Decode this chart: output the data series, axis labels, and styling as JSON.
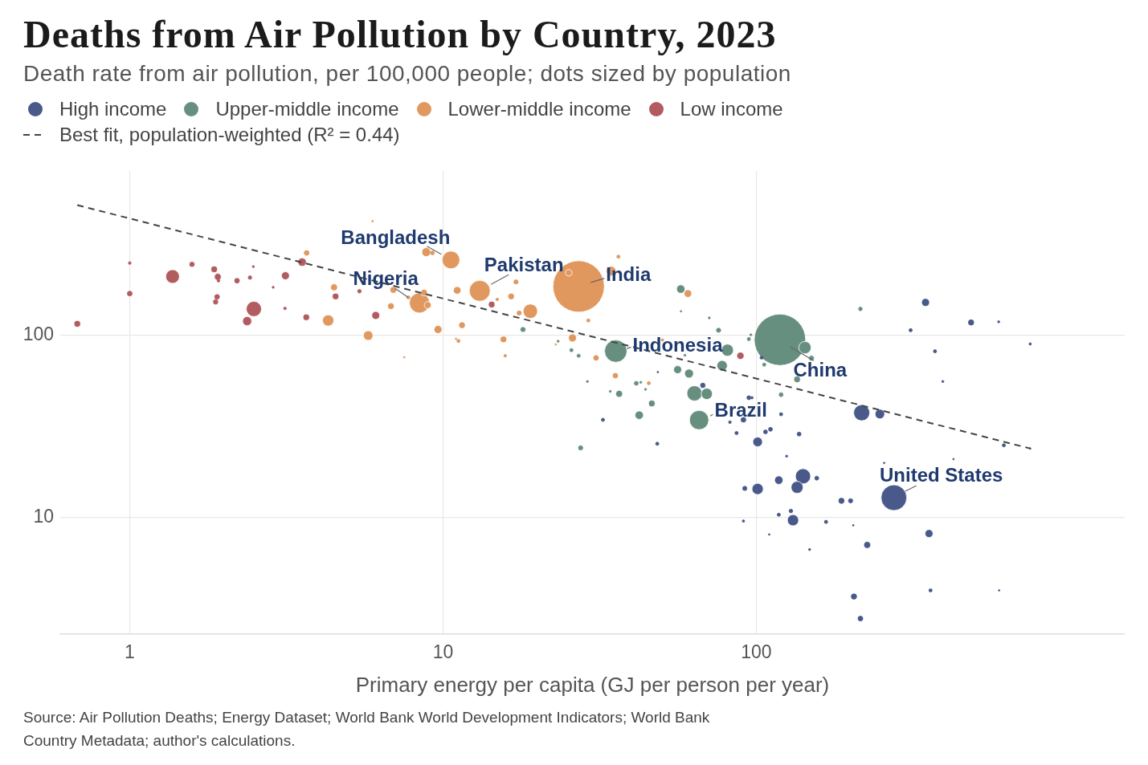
{
  "chart_data": {
    "type": "bubble",
    "title": "Deaths from Air Pollution by Country, 2023",
    "subtitle": "Death rate from air pollution, per 100,000 people; dots sized by population",
    "xlabel": "Primary energy per capita (GJ per person per year)",
    "log": "xy",
    "grid": true,
    "legend": "top left",
    "xlim": [
      0.6,
      1500
    ],
    "ylim": [
      2.3,
      800
    ],
    "xticks": [
      1,
      10,
      100
    ],
    "yticks": [
      10,
      100
    ],
    "annotations": [
      {
        "text": "Bangladesh",
        "x": 10.6,
        "y": 260
      },
      {
        "text": "Nigeria",
        "x": 8.41,
        "y": 151
      },
      {
        "text": "Pakistan",
        "x": 13.1,
        "y": 176
      },
      {
        "text": "India",
        "x": 27.1,
        "y": 186
      },
      {
        "text": "Indonesia",
        "x": 35.6,
        "y": 82.2
      },
      {
        "text": "China",
        "x": 119,
        "y": 94.8
      },
      {
        "text": "Brazil",
        "x": 65.7,
        "y": 34.4
      },
      {
        "text": "United States",
        "x": 275,
        "y": 12.9
      },
      "Source: Air Pollution Deaths; Energy Dataset; World Bank World Development Indicators; World Bank Country Metadata; author's calculations."
    ],
    "series": [
      {
        "name": "High income",
        "color": "#48598a",
        "x": [
          275,
          217,
          141,
          135,
          101,
          131,
          101,
          248,
          118,
          347,
          356,
          226,
          67.5,
          485,
          187,
          205,
          91,
          215,
          200,
          91.9,
          94.7,
          107,
          111,
          137,
          156,
          129,
          32.4,
          48.3,
          86.5,
          104,
          311,
          372,
          120,
          617,
          118,
          167,
          360,
          82.4,
          96.9,
          91,
          749,
          594,
          394,
          125,
          148,
          48.5,
          749,
          204,
          110,
          596,
          426,
          256
        ],
        "values": [
          12.9,
          37.7,
          16.9,
          14.7,
          14.4,
          9.7,
          26.1,
          37.1,
          16.1,
          152,
          8.2,
          7.1,
          53.3,
          118,
          12.4,
          3.7,
          34.5,
          2.8,
          12.4,
          14.5,
          45.6,
          29.6,
          30.6,
          28.8,
          16.5,
          10.9,
          34.5,
          25.5,
          29.2,
          75.7,
          107,
          82,
          37,
          25,
          10.4,
          9.5,
          4.0,
          33.5,
          45.6,
          9.6,
          90,
          119,
          56,
          21.8,
          6.7,
          63,
          24,
          9.1,
          8.1,
          4.0,
          21,
          20
        ],
        "sizes": [
          0.25,
          0.098,
          0.088,
          0.055,
          0.048,
          0.048,
          0.035,
          0.035,
          0.027,
          0.024,
          0.024,
          0.018,
          0.013,
          0.011,
          0.011,
          0.011,
          0.009,
          0.009,
          0.007,
          0.007,
          0.006,
          0.006,
          0.006,
          0.006,
          0.006,
          0.005,
          0.004,
          0.004,
          0.004,
          0.004,
          0.004,
          0.004,
          0.004,
          0.004,
          0.004,
          0.004,
          0.004,
          0.0028,
          0.0022,
          0.0022,
          0.0022,
          0.0017,
          0.0017,
          0.0017,
          0.0017,
          0.001,
          0.001,
          0.001,
          0.001,
          0.001,
          0.001,
          0.001
        ]
      },
      {
        "name": "Upper-middle income",
        "color": "#668f80",
        "x": [
          119,
          35.6,
          65.7,
          63.5,
          143,
          80.9,
          69.5,
          77.8,
          61.0,
          57.4,
          42.3,
          56.1,
          36.5,
          46.4,
          135,
          150,
          18.0,
          75.8,
          27.5,
          41.4,
          120,
          215,
          25.7,
          27.1,
          94.7,
          106,
          70.8,
          96.1,
          23.3,
          42.8,
          44.3,
          28.9,
          34.2,
          59.2,
          57.5
        ],
        "values": [
          94.8,
          82.2,
          34.4,
          48.2,
          85.9,
          83.2,
          47.9,
          68.4,
          61.9,
          180,
          36.6,
          65,
          47.9,
          42.4,
          57.5,
          75.2,
          108,
          107,
          24.2,
          54.7,
          47.4,
          140,
          83.2,
          77.5,
          95.7,
          69.3,
          125,
          101,
          93.1,
          55.4,
          50.7,
          56,
          49.4,
          78,
          136
        ],
        "sizes": [
          1,
          0.19,
          0.14,
          0.088,
          0.058,
          0.055,
          0.048,
          0.041,
          0.03,
          0.027,
          0.027,
          0.024,
          0.018,
          0.016,
          0.016,
          0.012,
          0.012,
          0.007,
          0.007,
          0.006,
          0.006,
          0.005,
          0.004,
          0.004,
          0.004,
          0.004,
          0.0017,
          0.0017,
          0.0017,
          0.0017,
          0.0017,
          0.0017,
          0.0017,
          0.0017,
          0.001
        ]
      },
      {
        "name": "Lower-middle income",
        "color": "#e0985f",
        "x": [
          27.1,
          13.1,
          8.41,
          10.6,
          19.0,
          4.3,
          5.77,
          34.4,
          8.84,
          9.64,
          25.9,
          11.1,
          60.5,
          4.49,
          8.94,
          6.94,
          8.7,
          25.2,
          15.6,
          6.82,
          11.5,
          16.5,
          3.67,
          30.8,
          35.5,
          17.1,
          17.5,
          9.25,
          7.75,
          11.2,
          36.3,
          29.1,
          45.4,
          14.9,
          15.8,
          50.2,
          5.96,
          7.52,
          11.0,
          22.9
        ],
        "values": [
          186,
          176,
          151,
          260,
          136,
          121,
          100,
          226,
          287,
          108,
          97,
          177,
          170,
          184,
          147,
          178,
          172,
          221,
          95.3,
          145,
          114,
          164,
          284,
          75.4,
          60.3,
          197,
          133,
          284,
          162,
          93.4,
          271,
          121,
          54.8,
          158,
          77.5,
          94.7,
          424,
          76,
          96,
          89.4
        ],
        "sizes": [
          1,
          0.165,
          0.153,
          0.118,
          0.079,
          0.048,
          0.035,
          0.035,
          0.03,
          0.024,
          0.024,
          0.022,
          0.022,
          0.018,
          0.018,
          0.016,
          0.016,
          0.016,
          0.016,
          0.011,
          0.011,
          0.011,
          0.009,
          0.009,
          0.009,
          0.007,
          0.007,
          0.006,
          0.004,
          0.004,
          0.004,
          0.004,
          0.004,
          0.0028,
          0.0028,
          0.0022,
          0.001,
          0.001,
          0.001,
          0.001
        ]
      },
      {
        "name": "Low income",
        "color": "#b25c60",
        "x": [
          2.49,
          1.37,
          2.37,
          3.55,
          3.14,
          6.1,
          89,
          1.91,
          0.68,
          1.86,
          3.66,
          4.54,
          14.3,
          1.58,
          1.88,
          1.0,
          1.9,
          2.2,
          2.42,
          5.41,
          1.0,
          1.92,
          3.13,
          2.48,
          2.87
        ],
        "values": [
          140,
          211,
          120,
          253,
          213,
          129,
          77.5,
          210,
          116,
          231,
          126,
          164,
          148,
          246,
          153,
          170,
          163,
          200,
          208,
          175,
          250,
          200,
          141,
          239,
          184
        ],
        "sizes": [
          0.088,
          0.071,
          0.032,
          0.027,
          0.024,
          0.024,
          0.02,
          0.018,
          0.016,
          0.016,
          0.016,
          0.016,
          0.016,
          0.013,
          0.013,
          0.009,
          0.009,
          0.009,
          0.005,
          0.005,
          0.0028,
          0.0028,
          0.0028,
          0.0017,
          0.0017
        ]
      },
      {
        "name": "Best fit, population-weighted (R² = 0.44)",
        "type": "line",
        "color": "#444444",
        "line_style": "dashed",
        "x": [
          0.68,
          750
        ],
        "values": [
          520,
          24
        ]
      }
    ]
  }
}
